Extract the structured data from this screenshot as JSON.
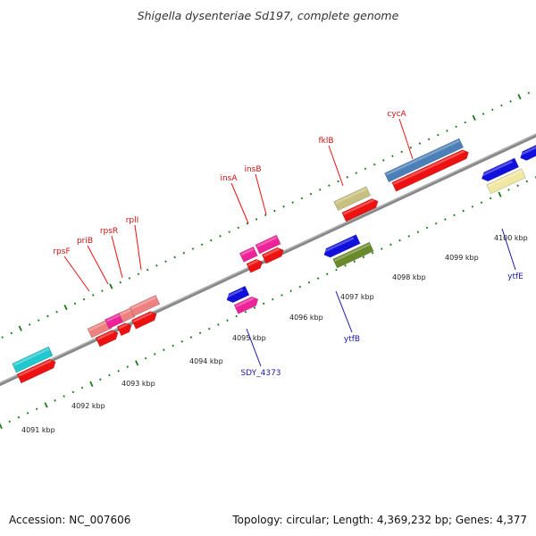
{
  "title": "Shigella dysenteriae Sd197, complete genome",
  "footer": {
    "accession": "Accession: NC_007606",
    "topology": "Topology: circular; Length: 4,369,232 bp; Genes: 4,377"
  },
  "ticks": [
    "4091 kbp",
    "4092 kbp",
    "4093 kbp",
    "4094 kbp",
    "4095 kbp",
    "4096 kbp",
    "4097 kbp",
    "4098 kbp",
    "4099 kbp",
    "4100 kbp"
  ],
  "labels_top": [
    "rpsF",
    "priB",
    "rpsR",
    "rplI",
    "insA",
    "insB",
    "fklB",
    "cycA"
  ],
  "labels_bottom": [
    "SDY_4373",
    "ytfB",
    "ytfE"
  ],
  "colors": {
    "backbone": "#888888",
    "tick": "#1a7a1a",
    "cds": "#ee1111",
    "ribosomal": "#ee8080",
    "pink": "#ee2299",
    "cyan": "#22c8d0",
    "khaki": "#c8c080",
    "steelblue": "#4a7fb8",
    "blue": "#1111dd",
    "olive": "#6a8a2a",
    "paleyellow": "#f0e8a0"
  }
}
